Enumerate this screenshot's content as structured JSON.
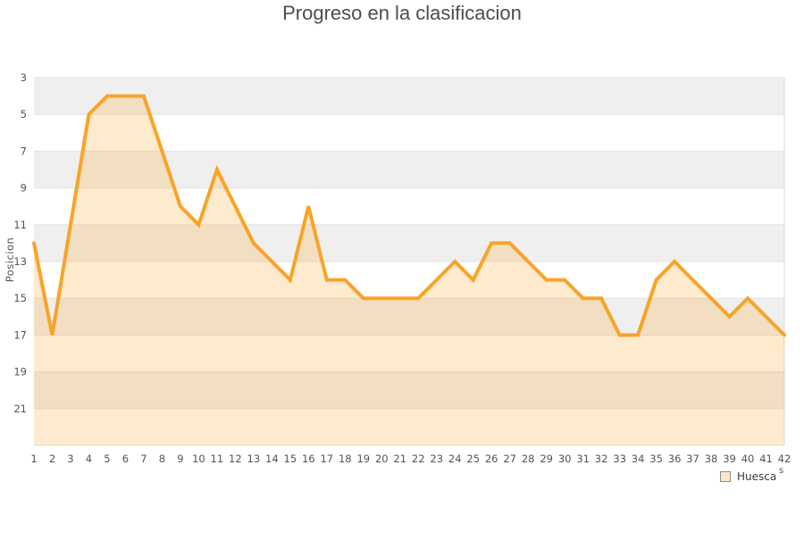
{
  "title": "Progreso en la clasificacion",
  "legend": {
    "label": "Huesca",
    "suffix": "s"
  },
  "colors": {
    "line": "#F8A428",
    "area_fill": "rgba(249,167,45,0.24)",
    "band_gray": "#EFEFEF",
    "band_white": "#FFFFFF",
    "gridline": "#E2E2E2",
    "plot_right_border": "#D9D9D9",
    "title_text": "#4D4D4D",
    "tick_text": "#545454",
    "legend_swatch_fill": "#FBE7C6",
    "legend_swatch_border": "#8C8C8C"
  },
  "chart_data": {
    "type": "area",
    "title": "Progreso en la clasificacion",
    "ylabel": "Posicion",
    "xlabel": "",
    "x": [
      1,
      2,
      3,
      4,
      5,
      6,
      7,
      8,
      9,
      10,
      11,
      12,
      13,
      14,
      15,
      16,
      17,
      18,
      19,
      20,
      21,
      22,
      23,
      24,
      25,
      26,
      27,
      28,
      29,
      30,
      31,
      32,
      33,
      34,
      35,
      36,
      37,
      38,
      39,
      40,
      41,
      42
    ],
    "x_ticks": [
      1,
      2,
      3,
      4,
      5,
      6,
      7,
      8,
      9,
      10,
      11,
      12,
      13,
      14,
      15,
      16,
      17,
      18,
      19,
      20,
      21,
      22,
      23,
      24,
      25,
      26,
      27,
      28,
      29,
      30,
      31,
      32,
      33,
      34,
      35,
      36,
      37,
      38,
      39,
      40,
      41,
      42
    ],
    "y_ticks": [
      3,
      5,
      7,
      9,
      11,
      13,
      15,
      17,
      19,
      21
    ],
    "ylim": [
      3,
      23
    ],
    "y_inverted": true,
    "grid": "horizontal-bands",
    "legend_position": "bottom-right",
    "series": [
      {
        "name": "Huesca",
        "values": [
          12,
          17,
          11,
          5,
          4,
          4,
          4,
          7,
          10,
          11,
          8,
          10,
          12,
          13,
          14,
          10,
          14,
          14,
          15,
          15,
          15,
          15,
          14,
          13,
          14,
          12,
          12,
          13,
          14,
          14,
          15,
          15,
          17,
          17,
          14,
          13,
          14,
          15,
          16,
          15,
          16,
          17
        ]
      }
    ]
  }
}
